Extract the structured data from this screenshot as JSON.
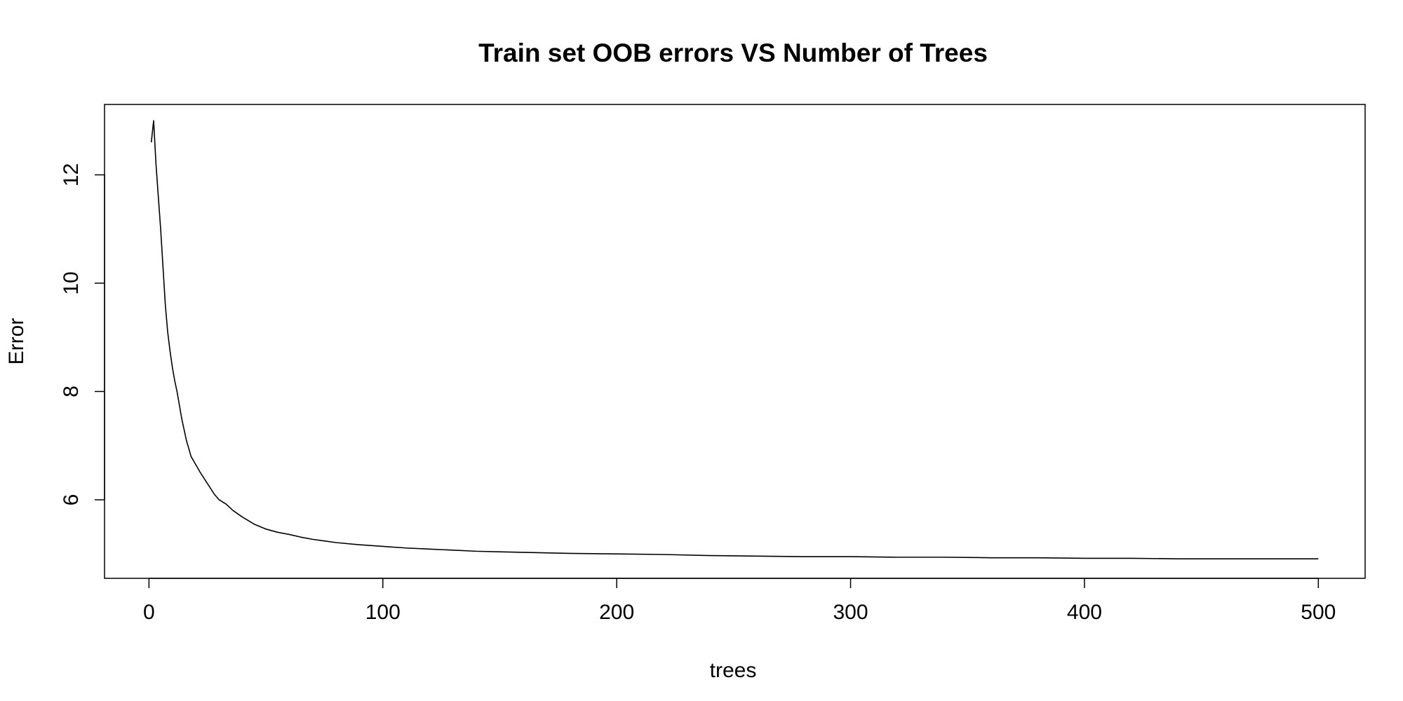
{
  "chart_data": {
    "type": "line",
    "title": "Train set OOB errors VS Number of Trees",
    "xlabel": "trees",
    "ylabel": "Error",
    "xlim": [
      -19,
      520
    ],
    "ylim": [
      4.55,
      13.3
    ],
    "x_ticks": [
      0,
      100,
      200,
      300,
      400,
      500
    ],
    "y_ticks": [
      6,
      8,
      10,
      12
    ],
    "grid": false,
    "legend": "none",
    "series": [
      {
        "color": "#000000",
        "points": [
          [
            1,
            12.6
          ],
          [
            2,
            13.0
          ],
          [
            3,
            12.2
          ],
          [
            4,
            11.6
          ],
          [
            5,
            11.0
          ],
          [
            6,
            10.3
          ],
          [
            7,
            9.6
          ],
          [
            8,
            9.1
          ],
          [
            9,
            8.75
          ],
          [
            10,
            8.45
          ],
          [
            11,
            8.2
          ],
          [
            12,
            8.0
          ],
          [
            13,
            7.75
          ],
          [
            14,
            7.5
          ],
          [
            15,
            7.3
          ],
          [
            16,
            7.1
          ],
          [
            17,
            6.95
          ],
          [
            18,
            6.8
          ],
          [
            20,
            6.65
          ],
          [
            22,
            6.5
          ],
          [
            25,
            6.3
          ],
          [
            28,
            6.1
          ],
          [
            30,
            6.0
          ],
          [
            33,
            5.92
          ],
          [
            36,
            5.8
          ],
          [
            40,
            5.68
          ],
          [
            45,
            5.55
          ],
          [
            50,
            5.46
          ],
          [
            55,
            5.4
          ],
          [
            60,
            5.36
          ],
          [
            65,
            5.31
          ],
          [
            70,
            5.27
          ],
          [
            75,
            5.24
          ],
          [
            80,
            5.21
          ],
          [
            90,
            5.17
          ],
          [
            100,
            5.14
          ],
          [
            110,
            5.11
          ],
          [
            120,
            5.09
          ],
          [
            130,
            5.07
          ],
          [
            140,
            5.05
          ],
          [
            150,
            5.04
          ],
          [
            160,
            5.03
          ],
          [
            170,
            5.02
          ],
          [
            180,
            5.01
          ],
          [
            200,
            5.0
          ],
          [
            220,
            4.99
          ],
          [
            240,
            4.97
          ],
          [
            260,
            4.96
          ],
          [
            280,
            4.95
          ],
          [
            300,
            4.95
          ],
          [
            320,
            4.94
          ],
          [
            340,
            4.94
          ],
          [
            360,
            4.93
          ],
          [
            380,
            4.93
          ],
          [
            400,
            4.92
          ],
          [
            420,
            4.92
          ],
          [
            440,
            4.91
          ],
          [
            460,
            4.91
          ],
          [
            480,
            4.91
          ],
          [
            500,
            4.91
          ]
        ]
      }
    ]
  }
}
